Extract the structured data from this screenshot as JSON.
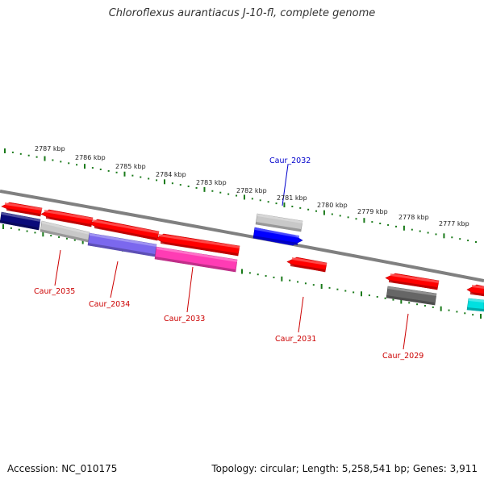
{
  "title": "Chloroflexus aurantiacus J-10-fl, complete genome",
  "footer": {
    "accession": "Accession: NC_010175",
    "summary": "Topology: circular; Length: 5,258,541 bp; Genes: 3,911"
  },
  "colors": {
    "backbone": "#808080",
    "tick": "#1a7a1a",
    "label_plus": "#0000cc",
    "label_minus": "#cc0000",
    "red": "#ff0000",
    "navy": "#0a0a7a",
    "light_gray": "#c8c8c8",
    "slate_blue": "#7b68ee",
    "pink": "#ff3cb4",
    "blue": "#0000ff",
    "dark_gray": "#666666",
    "cyan": "#00e0e0"
  },
  "scale": {
    "labels": [
      "2787 kbp",
      "2786 kbp",
      "2785 kbp",
      "2784 kbp",
      "2783 kbp",
      "2782 kbp",
      "2781 kbp",
      "2780 kbp",
      "2779 kbp",
      "2778 kbp",
      "2777 kbp"
    ]
  },
  "gene_labels": [
    {
      "id": "caur2032",
      "text": "Caur_2032",
      "strand": "plus"
    },
    {
      "id": "caur2035",
      "text": "Caur_2035",
      "strand": "minus"
    },
    {
      "id": "caur2034",
      "text": "Caur_2034",
      "strand": "minus"
    },
    {
      "id": "caur2033",
      "text": "Caur_2033",
      "strand": "minus"
    },
    {
      "id": "caur2031",
      "text": "Caur_2031",
      "strand": "minus"
    },
    {
      "id": "caur2029",
      "text": "Caur_2029",
      "strand": "minus"
    }
  ],
  "features": [
    {
      "id": "f-red-1",
      "color": "red",
      "dir": "left"
    },
    {
      "id": "f-red-2",
      "color": "red",
      "dir": "left"
    },
    {
      "id": "f-red-3",
      "color": "red",
      "dir": "left"
    },
    {
      "id": "f-red-4",
      "color": "red",
      "dir": "left"
    },
    {
      "id": "f-navy",
      "color": "navy",
      "dir": "none"
    },
    {
      "id": "f-lgray-1",
      "color": "light_gray",
      "dir": "none"
    },
    {
      "id": "f-slate",
      "color": "slate_blue",
      "dir": "none"
    },
    {
      "id": "f-pink",
      "color": "pink",
      "dir": "none"
    },
    {
      "id": "f-lgray-2",
      "color": "light_gray",
      "dir": "none"
    },
    {
      "id": "f-blue",
      "color": "blue",
      "dir": "right"
    },
    {
      "id": "f-red-5",
      "color": "red",
      "dir": "left"
    },
    {
      "id": "f-red-6",
      "color": "red",
      "dir": "left"
    },
    {
      "id": "f-dgray",
      "color": "dark_gray",
      "dir": "none"
    },
    {
      "id": "f-red-7",
      "color": "red",
      "dir": "left"
    },
    {
      "id": "f-cyan",
      "color": "cyan",
      "dir": "none"
    }
  ]
}
